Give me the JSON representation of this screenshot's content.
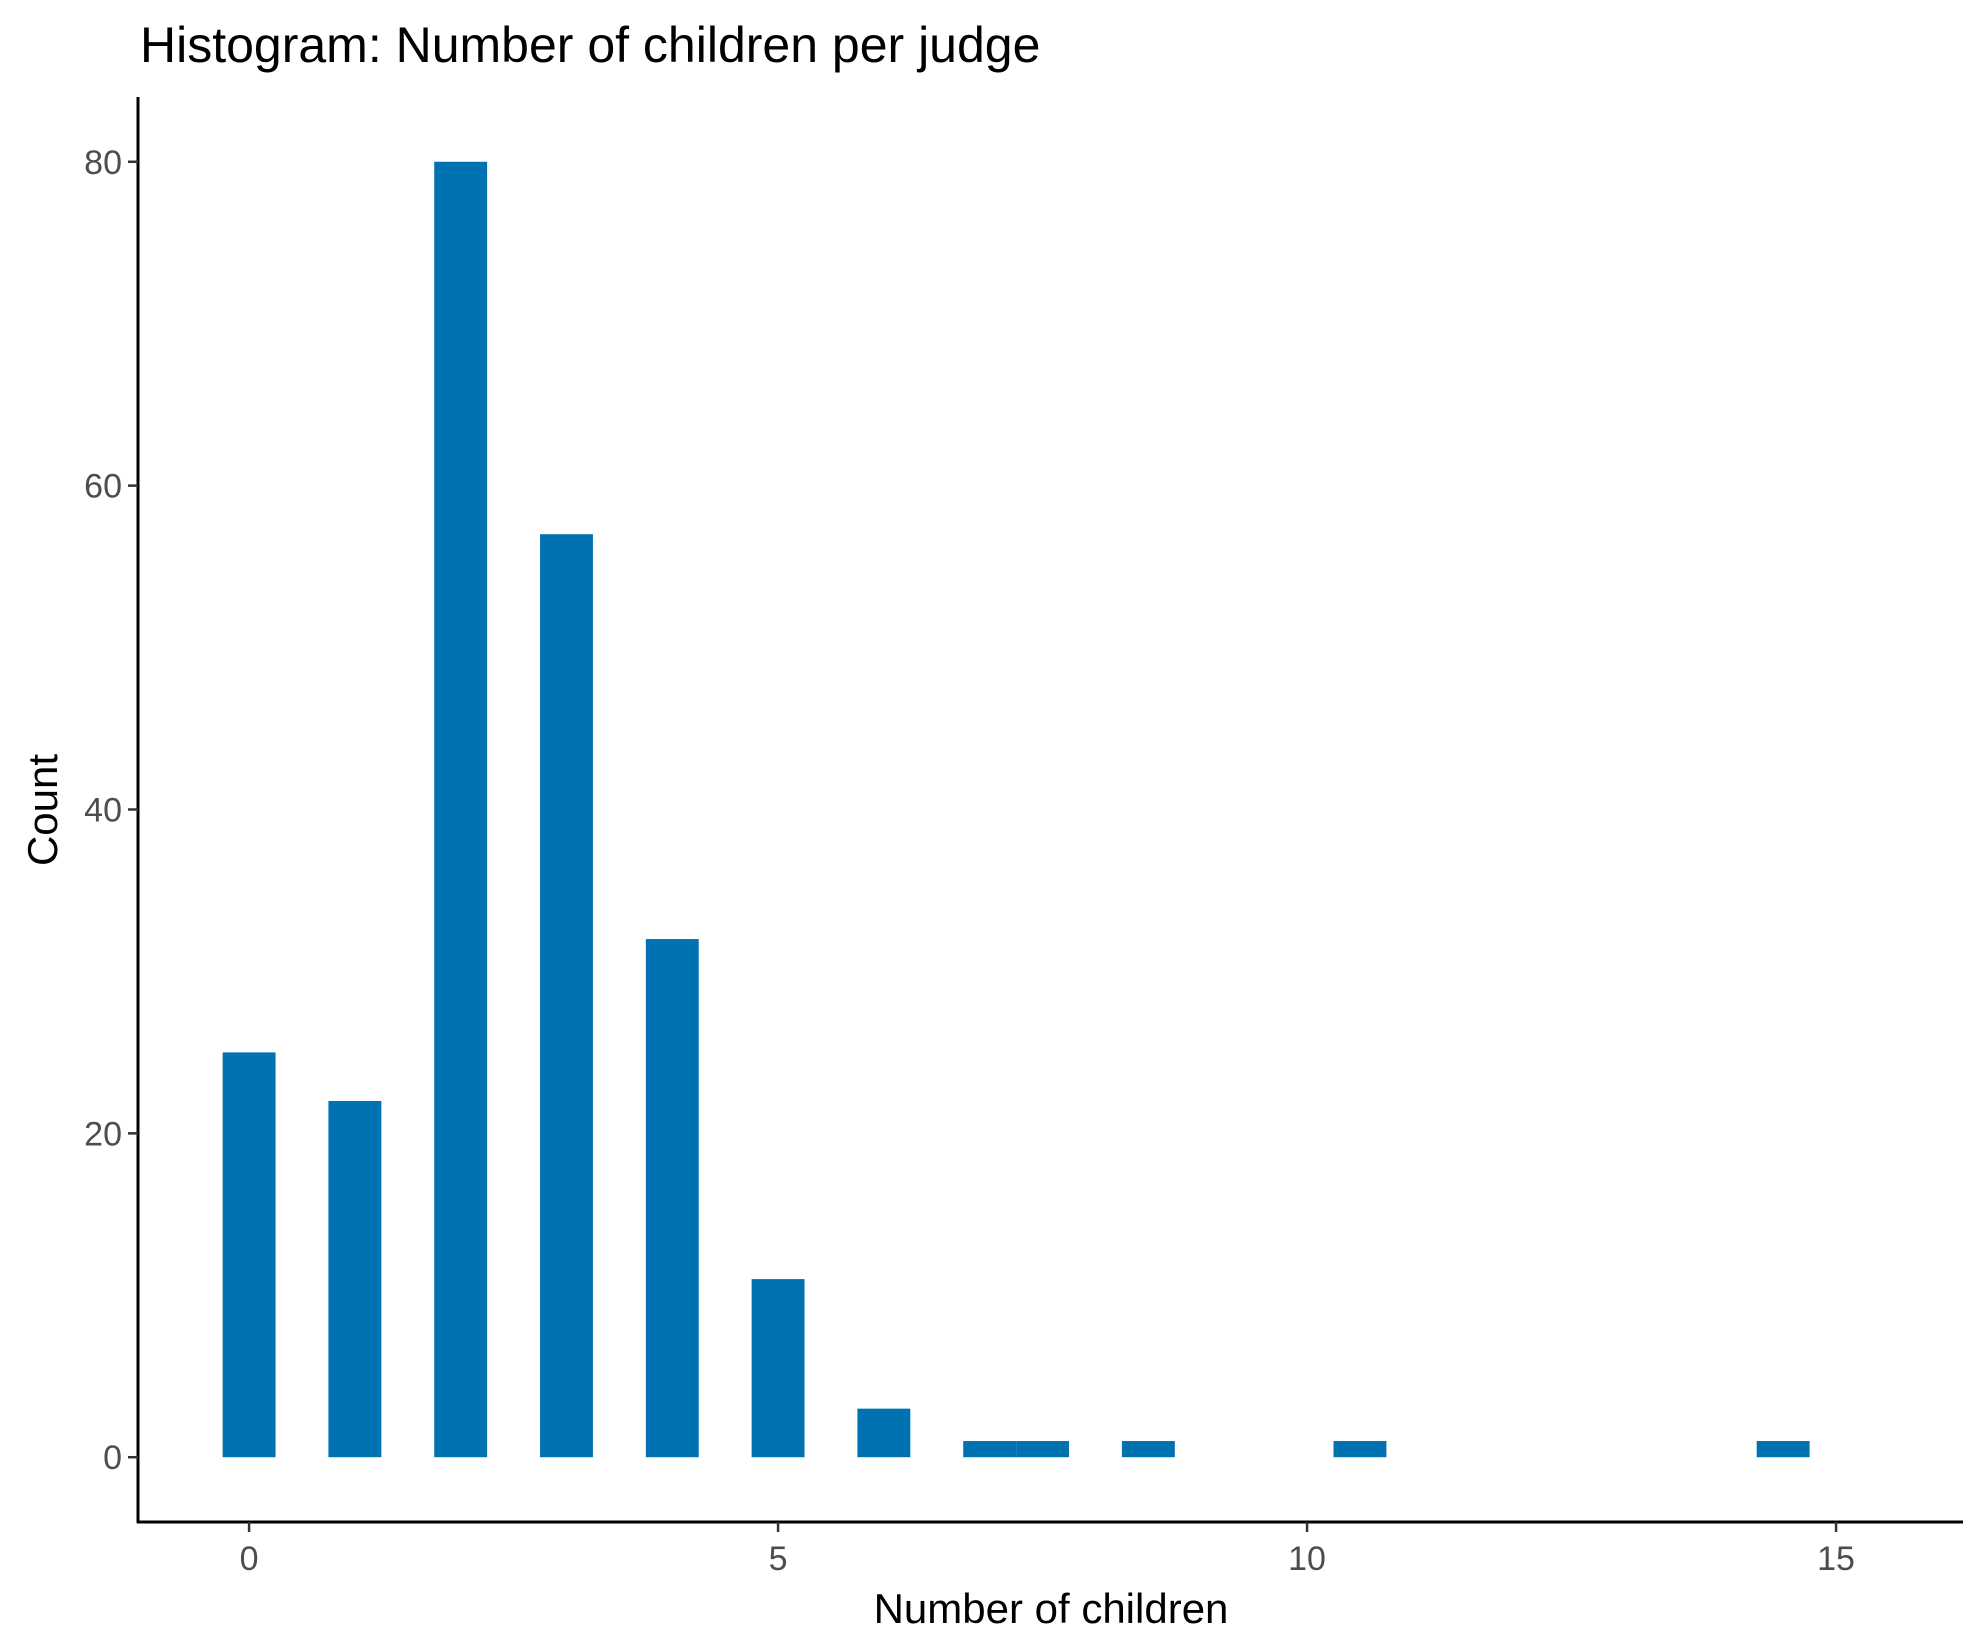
{
  "chart_data": {
    "type": "bar",
    "title": "Histogram: Number of children per judge",
    "xlabel": "Number of children",
    "ylabel": "Count",
    "bar_color": "#0072B2",
    "bar_width": 0.5,
    "xlim": [
      -1.05,
      16.2
    ],
    "ylim": [
      -4,
      84
    ],
    "x_ticks": [
      0,
      5,
      10,
      15
    ],
    "y_ticks": [
      0,
      20,
      40,
      60,
      80
    ],
    "grid": false,
    "bins": [
      {
        "x": 0,
        "count": 25
      },
      {
        "x": 1,
        "count": 22
      },
      {
        "x": 2,
        "count": 80
      },
      {
        "x": 3,
        "count": 57
      },
      {
        "x": 4,
        "count": 32
      },
      {
        "x": 5,
        "count": 11
      },
      {
        "x": 6,
        "count": 3
      },
      {
        "x": 7,
        "count": 1
      },
      {
        "x": 7.5,
        "count": 1
      },
      {
        "x": 8.5,
        "count": 1
      },
      {
        "x": 10.5,
        "count": 1
      },
      {
        "x": 14.5,
        "count": 1
      }
    ]
  }
}
